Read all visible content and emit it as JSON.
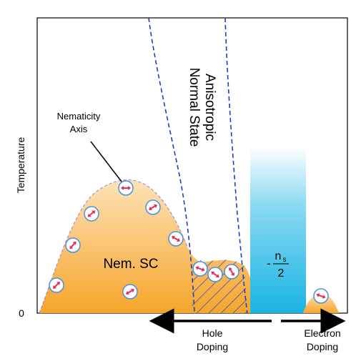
{
  "axes": {
    "y_label": "Temperature",
    "origin_label": "0"
  },
  "regions": {
    "nematic_sc": "Nem. SC",
    "anisotropic_normal_state_line1": "Anisotropic",
    "anisotropic_normal_state_line2": "Normal State",
    "ns_numerator": "n",
    "ns_subscript": "s",
    "ns_denominator": "2",
    "ns_sign": "-"
  },
  "annotations": {
    "nematicity_axis_line1": "Nematicity",
    "nematicity_axis_line2": "Axis"
  },
  "doping": {
    "hole_line1": "Hole",
    "hole_line2": "Doping",
    "electron_line1": "Electron",
    "electron_line2": "Doping"
  },
  "colors": {
    "sc_dome_top": "#fde2b8",
    "sc_dome_bottom": "#f6a52a",
    "ns_bar_top": "#ffffff",
    "ns_bar_bottom": "#19b3e4",
    "dashed_boundary": "#1a3fc4",
    "hatch": "#2a47c9",
    "spin_arrow": "#e8285e",
    "spin_circle": "#4a90e2"
  }
}
